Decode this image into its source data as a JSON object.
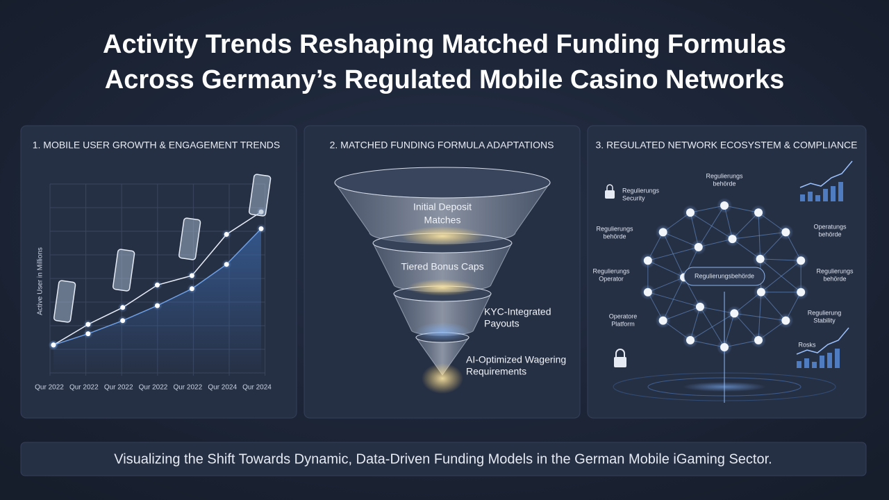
{
  "header": {
    "title": [
      "Activity Trends Reshaping Matched Funding Formulas",
      "Across Germany’s Regulated Mobile Casino Networks"
    ]
  },
  "chart_data": {
    "type": "line",
    "title": "1. MOBILE USER GROWTH & ENGAGEMENT TRENDS",
    "y_label": "Active User in Millions",
    "categories": [
      "Qur 2022",
      "Qur 2022",
      "Qur 2022",
      "Qur 2022",
      "Qur 2022",
      "Qur 2024",
      "Qur 2024"
    ],
    "series": [
      {
        "color": "#e8eef8",
        "values": [
          1.6,
          2.7,
          3.6,
          4.8,
          5.3,
          7.5,
          8.7
        ]
      },
      {
        "color": "#6fa0e6",
        "values": [
          1.6,
          2.2,
          2.9,
          3.7,
          4.6,
          5.9,
          7.8
        ]
      }
    ],
    "ylim": [
      0,
      10
    ]
  },
  "funnel": {
    "title": "2. MATCHED FUNDING FORMULA ADAPTATIONS",
    "stages": [
      [
        "Initial Deposit",
        "Matches"
      ],
      [
        "Tiered Bonus Caps"
      ],
      [
        "KYC-Integrated",
        "Payouts"
      ],
      [
        "AI-Optimized Wagering",
        "Requirements"
      ]
    ]
  },
  "network": {
    "title": "3. REGULATED NETWORK ECOSYSTEM & COMPLIANCE",
    "center": "Regulierungsbehörde",
    "labels": [
      [
        "Regulierungs",
        "behörde"
      ],
      [
        "Regulierungs",
        "Security"
      ],
      [
        "Regulierungs",
        "behörde"
      ],
      [
        "Operatungs",
        "behörde"
      ],
      [
        "Regulierungs",
        "Operator"
      ],
      [
        "Regulierungs",
        "behörde"
      ],
      [
        "Operatore",
        "Platform"
      ],
      [
        "Regulierung",
        "Stability"
      ],
      [
        "Rosks"
      ]
    ]
  },
  "footer": {
    "text": "Visualizing the Shift Towards Dynamic, Data-Driven Funding Models in the German Mobile iGaming Sector."
  }
}
